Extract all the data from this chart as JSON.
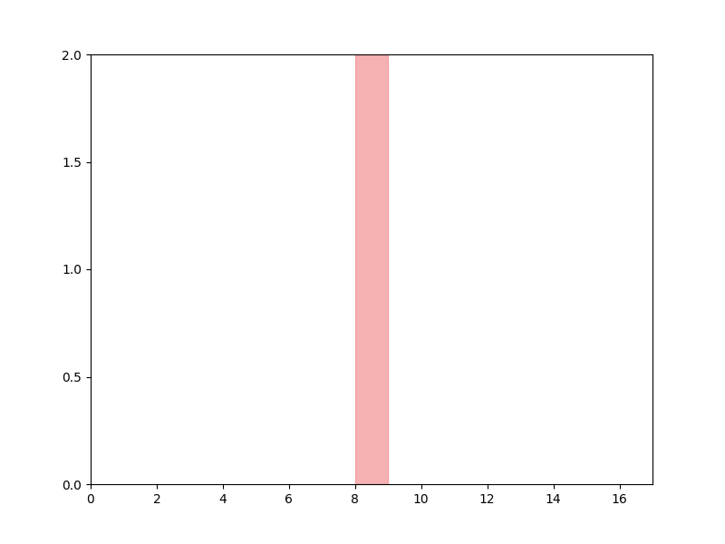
{
  "xlim": [
    0,
    17
  ],
  "ylim": [
    0.0,
    2.0
  ],
  "xticks": [
    0,
    2,
    4,
    6,
    8,
    10,
    12,
    14,
    16
  ],
  "yticks": [
    0.0,
    0.5,
    1.0,
    1.5,
    2.0
  ],
  "bar_x_start": 8.0,
  "bar_x_end": 9.0,
  "bar_color": "#F08080",
  "bar_alpha": 0.6,
  "background_color": "#ffffff",
  "figsize": [
    8.0,
    6.0
  ],
  "dpi": 100
}
